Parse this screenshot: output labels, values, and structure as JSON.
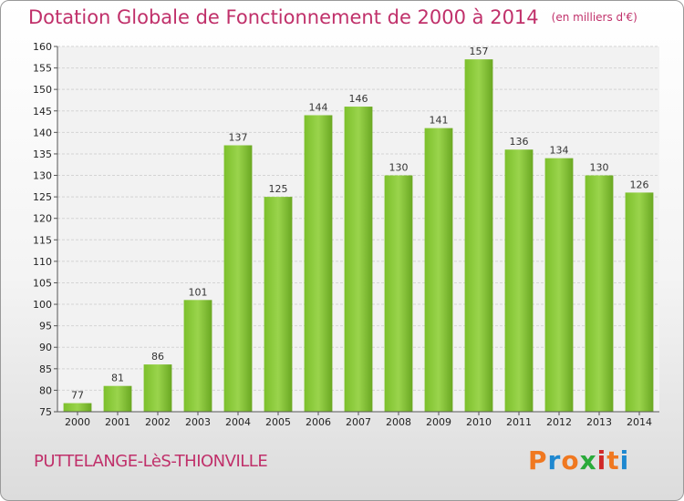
{
  "header": {
    "title": "Dotation Globale de Fonctionnement de 2000 à 2014",
    "unit": "(en milliers d'€)"
  },
  "footer": {
    "commune": "PUTTELANGE-LèS-THIONVILLE",
    "brand": [
      "P",
      "r",
      "o",
      "x",
      "i",
      "t",
      "i"
    ],
    "brand_colors": [
      "#f07820",
      "#1e88d0",
      "#f07820",
      "#2aaa3a",
      "#d02828",
      "#f07820",
      "#1e88d0"
    ]
  },
  "chart_data": {
    "type": "bar",
    "title": "Dotation Globale de Fonctionnement de 2000 à 2014",
    "xlabel": "",
    "ylabel": "",
    "categories": [
      "2000",
      "2001",
      "2002",
      "2003",
      "2004",
      "2005",
      "2006",
      "2007",
      "2008",
      "2009",
      "2010",
      "2011",
      "2012",
      "2013",
      "2014"
    ],
    "values": [
      77,
      81,
      86,
      101,
      137,
      125,
      144,
      146,
      130,
      141,
      157,
      136,
      134,
      130,
      126
    ],
    "ylim": [
      75,
      160
    ],
    "yticks": [
      75,
      80,
      85,
      90,
      95,
      100,
      105,
      110,
      115,
      120,
      125,
      130,
      135,
      140,
      145,
      150,
      155,
      160
    ],
    "grid": true,
    "bar_color": "#7cc02c"
  }
}
